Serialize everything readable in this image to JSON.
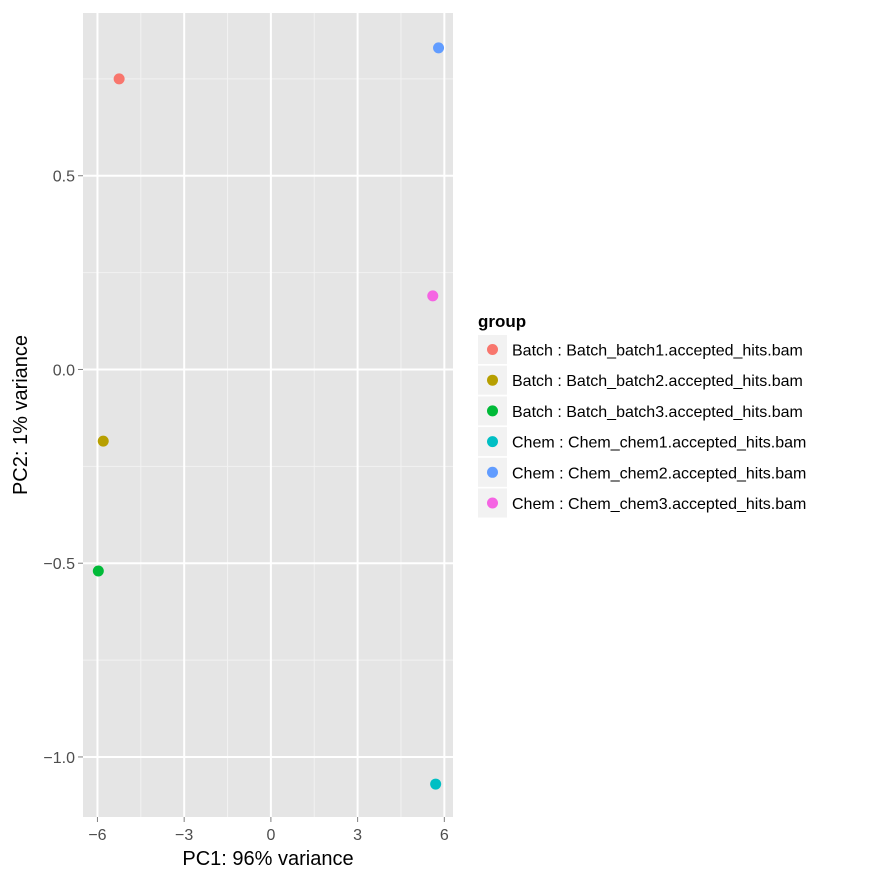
{
  "chart_data": {
    "type": "scatter",
    "xlabel": "PC1: 96% variance",
    "ylabel": "PC2: 1% variance",
    "xlim": [
      -6.5,
      6.3
    ],
    "ylim": [
      -1.155,
      0.92
    ],
    "x_ticks": [
      -6,
      -3,
      0,
      3,
      6
    ],
    "x_tick_labels": [
      "−6",
      "−3",
      "0",
      "3",
      "6"
    ],
    "y_ticks": [
      0.5,
      0.0,
      -0.5,
      -1.0
    ],
    "y_tick_labels": [
      "0.5",
      "0.0",
      "−0.5",
      "−1.0"
    ],
    "grid": true,
    "legend": {
      "title": "group",
      "placement": "right"
    },
    "series": [
      {
        "name": "Batch : Batch_batch1.accepted_hits.bam",
        "color": "#F8766D",
        "x": [
          -5.25
        ],
        "y": [
          0.75
        ]
      },
      {
        "name": "Batch : Batch_batch2.accepted_hits.bam",
        "color": "#B79F00",
        "x": [
          -5.8
        ],
        "y": [
          -0.185
        ]
      },
      {
        "name": "Batch : Batch_batch3.accepted_hits.bam",
        "color": "#00BA38",
        "x": [
          -5.97
        ],
        "y": [
          -0.52
        ]
      },
      {
        "name": "Chem : Chem_chem1.accepted_hits.bam",
        "color": "#00BFC4",
        "x": [
          5.7
        ],
        "y": [
          -1.07
        ]
      },
      {
        "name": "Chem : Chem_chem2.accepted_hits.bam",
        "color": "#619CFF",
        "x": [
          5.8
        ],
        "y": [
          0.83
        ]
      },
      {
        "name": "Chem : Chem_chem3.accepted_hits.bam",
        "color": "#F564E3",
        "x": [
          5.6
        ],
        "y": [
          0.19
        ]
      }
    ]
  }
}
